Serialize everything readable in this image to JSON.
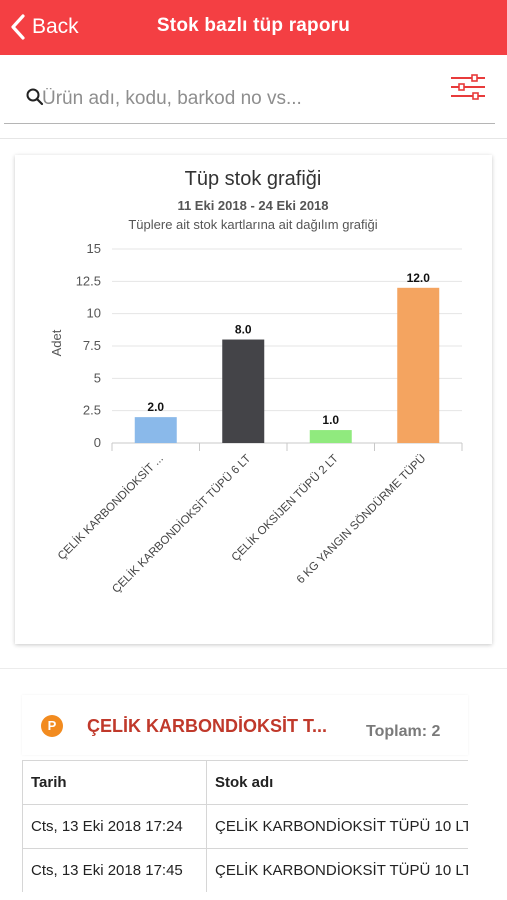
{
  "navbar": {
    "back_label": "Back",
    "title": "Stok bazlı tüp raporu",
    "background": "#f43f43"
  },
  "search": {
    "placeholder": "Ürün adı, kodu, barkod no vs...",
    "value": ""
  },
  "chart_data": {
    "type": "bar",
    "title": "Tüp stok grafiği",
    "subtitle": "11 Eki 2018 - 24 Eki 2018",
    "description": "Tüplere ait stok kartlarına ait dağılım grafiği",
    "ylabel": "Adet",
    "xlabel": "",
    "ylim": [
      0,
      15
    ],
    "yticks": [
      "0",
      "2.5",
      "5",
      "7.5",
      "10",
      "12.5",
      "15"
    ],
    "categories": [
      "ÇELİK KARBONDİOKSİT ...",
      "ÇELİK KARBONDİOKSİT TÜPÜ 6 LT",
      "ÇELİK OKSİJEN TÜPÜ 2 LT",
      "6 KG YANGIN SÖNDÜRME TÜPÜ"
    ],
    "values": [
      2,
      8,
      1,
      12
    ],
    "value_labels": [
      "2.0",
      "8.0",
      "1.0",
      "12.0"
    ],
    "colors": [
      "#8ab9ea",
      "#444448",
      "#90ea7e",
      "#f4a460"
    ],
    "grid": true
  },
  "group": {
    "badge": "P",
    "title": "ÇELİK KARBONDİOKSİT T...",
    "total": "Toplam: 2"
  },
  "table": {
    "headers": [
      "Tarih",
      "Stok adı"
    ],
    "rows": [
      [
        "Cts, 13 Eki 2018 17:24",
        "ÇELİK KARBONDİOKSİT TÜPÜ 10 LT"
      ],
      [
        "Cts, 13 Eki 2018 17:45",
        "ÇELİK KARBONDİOKSİT TÜPÜ 10 LT"
      ]
    ]
  }
}
